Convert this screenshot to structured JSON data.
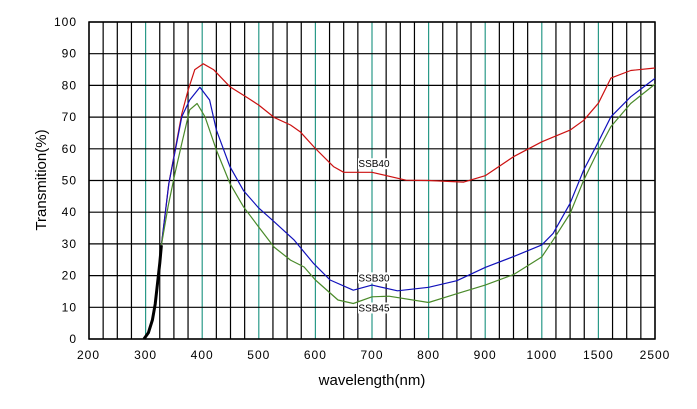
{
  "chart_data": {
    "type": "line",
    "title": "",
    "xlabel": "wavelength(nm)",
    "ylabel": "Transmition(%)",
    "x_ticks": [
      "200",
      "300",
      "400",
      "500",
      "600",
      "700",
      "800",
      "900",
      "1000",
      "1500",
      "2500"
    ],
    "x_tick_values": [
      200,
      300,
      400,
      500,
      600,
      700,
      800,
      900,
      1000,
      1500,
      2500
    ],
    "x_scale": "piecewise-linear between ticks",
    "y_ticks": [
      "0",
      "10",
      "20",
      "30",
      "40",
      "50",
      "60",
      "70",
      "80",
      "90",
      "100"
    ],
    "ylim": [
      0,
      100
    ],
    "xlim": [
      200,
      2500
    ],
    "grid": true,
    "shared_segment": {
      "name": "common",
      "color": "#000000",
      "x": [
        297,
        305,
        312,
        317,
        321,
        325,
        328
      ],
      "y": [
        0,
        2,
        6,
        11,
        17.5,
        24,
        29.6
      ]
    },
    "series": [
      {
        "name": "SSB40",
        "label": "SSB40",
        "color": "#cc1111",
        "x": [
          328,
          341,
          364,
          375,
          387,
          402,
          420,
          449,
          479,
          500,
          527,
          556,
          573,
          600,
          632,
          650,
          700,
          760,
          800,
          862,
          900,
          950,
          1000,
          1250,
          1370,
          1500,
          1720,
          2070,
          2500
        ],
        "y": [
          29.6,
          49,
          71,
          78.5,
          85,
          86.8,
          85,
          79.6,
          76.2,
          73.8,
          69.9,
          67.5,
          65.4,
          60.1,
          54.4,
          52.6,
          52.6,
          50.1,
          50,
          49.5,
          51.5,
          57.5,
          62.2,
          65.9,
          69,
          74.4,
          82.3,
          84.7,
          85.5
        ]
      },
      {
        "name": "SSB30",
        "label": "SSB30",
        "color": "#1111bb",
        "x": [
          328,
          341,
          364,
          378,
          396,
          413,
          425,
          449,
          473,
          500,
          527,
          562,
          597,
          626,
          667,
          700,
          745,
          800,
          850,
          900,
          950,
          1000,
          1100,
          1250,
          1370,
          1500,
          1720,
          2070,
          2500
        ],
        "y": [
          29.6,
          49,
          70.1,
          75.4,
          79.4,
          75.4,
          65.9,
          54.4,
          46.8,
          41.3,
          37.0,
          31.3,
          23.8,
          18.6,
          15.4,
          17,
          15.2,
          16.3,
          18.4,
          22.6,
          26,
          29.7,
          33.3,
          42.8,
          53.3,
          62.2,
          70.1,
          76.4,
          82.2
        ]
      },
      {
        "name": "SSB45",
        "label": "SSB45",
        "color": "#4a8a2a",
        "x": [
          328,
          340,
          352,
          364,
          378,
          391,
          405,
          425,
          449,
          473,
          500,
          527,
          556,
          580,
          600,
          640,
          667,
          700,
          730,
          800,
          850,
          900,
          950,
          1000,
          1100,
          1250,
          1370,
          1500,
          1720,
          2070,
          2500
        ],
        "y": [
          29.6,
          42,
          52.3,
          61.7,
          72.3,
          74.3,
          70.1,
          59.6,
          49.1,
          41.7,
          35.3,
          29.0,
          24.9,
          22.7,
          18.6,
          12.3,
          11.2,
          13.3,
          13.5,
          11.5,
          14.3,
          17,
          20.3,
          25.9,
          31.2,
          39.6,
          50.1,
          59.6,
          67,
          74.3,
          80.4
        ]
      }
    ],
    "annotations": [
      {
        "text": "SSB40",
        "x": 700,
        "y": 54.5
      },
      {
        "text": "SSB30",
        "x": 700,
        "y": 18.5
      },
      {
        "text": "SSB45",
        "x": 700,
        "y": 9
      }
    ]
  }
}
